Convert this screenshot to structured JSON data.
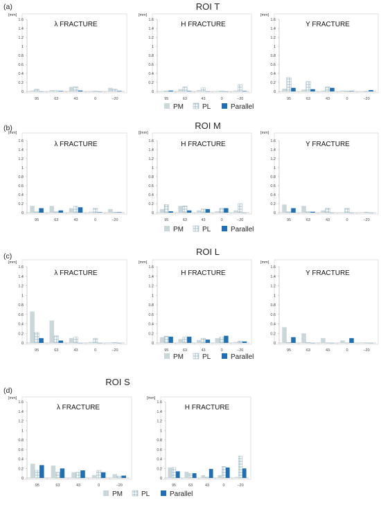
{
  "colors": {
    "pm": "#c9d6da",
    "pl_fill": "#ffffff",
    "pl_hatch": "#8fb0bb",
    "parallel": "#1f6fb5",
    "axis": "#bbbbbb",
    "grid": "#d9d9d9"
  },
  "legend": {
    "pm": "PM",
    "pl": "PL",
    "parallel": "Parallel"
  },
  "chart_data": {
    "type": "bar",
    "unit_label": "[mm]",
    "categories": [
      "95",
      "63",
      "43",
      "0",
      "−20"
    ],
    "ylim": [
      0,
      1.6
    ],
    "yticks": [
      "0",
      "0.2",
      "0.4",
      "0.6",
      "0.8",
      "1",
      "1.2",
      "1.4",
      "1.6"
    ],
    "series_names": [
      "PM",
      "PL",
      "Parallel"
    ],
    "panels": [
      {
        "label": "(a)",
        "title": "ROI T",
        "charts": [
          {
            "title": "λ FRACTURE",
            "unit_label": "[mm]",
            "values": {
              "PM": [
                0.02,
                0.03,
                0.1,
                0.01,
                0.08
              ],
              "PL": [
                0.05,
                0.02,
                0.1,
                0.01,
                0.05
              ],
              "Parallel": [
                0.0,
                0.01,
                0.02,
                0.0,
                0.01
              ]
            }
          },
          {
            "title": "H  FRACTURE",
            "unit_label": "[mm]",
            "values": {
              "PM": [
                0.01,
                0.05,
                0.03,
                0.01,
                0.02
              ],
              "PL": [
                0.01,
                0.1,
                0.08,
                0.01,
                0.15
              ],
              "Parallel": [
                0.02,
                0.01,
                0.0,
                0.0,
                0.01
              ]
            }
          },
          {
            "title": "Y  FRACTURE",
            "unit_label": "[mm]",
            "values": {
              "PM": [
                0.06,
                0.04,
                0.02,
                0.02,
                0.0
              ],
              "PL": [
                0.31,
                0.22,
                0.1,
                0.01,
                0.0
              ],
              "Parallel": [
                0.08,
                0.05,
                0.08,
                0.01,
                0.03
              ]
            }
          }
        ]
      },
      {
        "label": "(b)",
        "title": "ROI M",
        "charts": [
          {
            "title": "λ FRACTURE",
            "unit_label": "[mm]",
            "values": {
              "PM": [
                0.15,
                0.15,
                0.1,
                0.02,
                0.08
              ],
              "PL": [
                0.02,
                0.02,
                0.14,
                0.1,
                0.01
              ],
              "Parallel": [
                0.1,
                0.05,
                0.12,
                0.01,
                0.01
              ]
            }
          },
          {
            "title": "H  FRACTURE",
            "unit_label": "[[mm]",
            "values": {
              "PM": [
                0.08,
                0.15,
                0.05,
                0.03,
                0.05
              ],
              "PL": [
                0.18,
                0.15,
                0.08,
                0.1,
                0.2
              ],
              "Parallel": [
                0.03,
                0.05,
                0.08,
                0.1,
                0.0
              ]
            }
          },
          {
            "title": "Y  FRACTURE",
            "unit_label": "[mm]",
            "values": {
              "PM": [
                0.18,
                0.15,
                0.05,
                0.01,
                0.01
              ],
              "PL": [
                0.02,
                0.02,
                0.1,
                0.1,
                0.01
              ],
              "Parallel": [
                0.1,
                0.02,
                0.0,
                0.0,
                0.0
              ]
            }
          }
        ]
      },
      {
        "label": "(c)",
        "title": "ROI L",
        "charts": [
          {
            "title": "λ FRACTURE",
            "unit_label": "[mm]",
            "values": {
              "PM": [
                0.66,
                0.47,
                0.1,
                0.02,
                0.01
              ],
              "PL": [
                0.22,
                0.15,
                0.12,
                0.1,
                0.01
              ],
              "Parallel": [
                0.1,
                0.05,
                0.0,
                0.0,
                0.0
              ]
            }
          },
          {
            "title": "H  FRACTURE",
            "unit_label": "[mm]",
            "values": {
              "PM": [
                0.12,
                0.08,
                0.06,
                0.1,
                0.02
              ],
              "PL": [
                0.14,
                0.12,
                0.1,
                0.12,
                0.04
              ],
              "Parallel": [
                0.13,
                0.13,
                0.07,
                0.15,
                0.03
              ]
            }
          },
          {
            "title": "Y  FRACTURE",
            "unit_label": "[mm]",
            "values": {
              "PM": [
                0.33,
                0.2,
                0.1,
                0.05,
                0.01
              ],
              "PL": [
                0.01,
                0.01,
                0.0,
                0.0,
                0.0
              ],
              "Parallel": [
                0.12,
                0.0,
                0.0,
                0.1,
                0.0
              ]
            }
          }
        ]
      },
      {
        "label": "(d)",
        "title": "ROI S",
        "charts": [
          {
            "title": "λ FRACTURE",
            "unit_label": "[mm]",
            "values": {
              "PM": [
                0.3,
                0.26,
                0.12,
                0.06,
                0.08
              ],
              "PL": [
                0.16,
                0.12,
                0.12,
                0.16,
                0.04
              ],
              "Parallel": [
                0.27,
                0.2,
                0.16,
                0.12,
                0.05
              ]
            }
          },
          {
            "title": "H  FRACTURE",
            "unit_label": "[mm]",
            "values": {
              "PM": [
                0.22,
                0.13,
                0.06,
                0.06,
                0.02
              ],
              "PL": [
                0.22,
                0.1,
                0.02,
                0.24,
                0.46
              ],
              "Parallel": [
                0.14,
                0.1,
                0.19,
                0.22,
                0.2
              ]
            }
          }
        ]
      }
    ]
  }
}
